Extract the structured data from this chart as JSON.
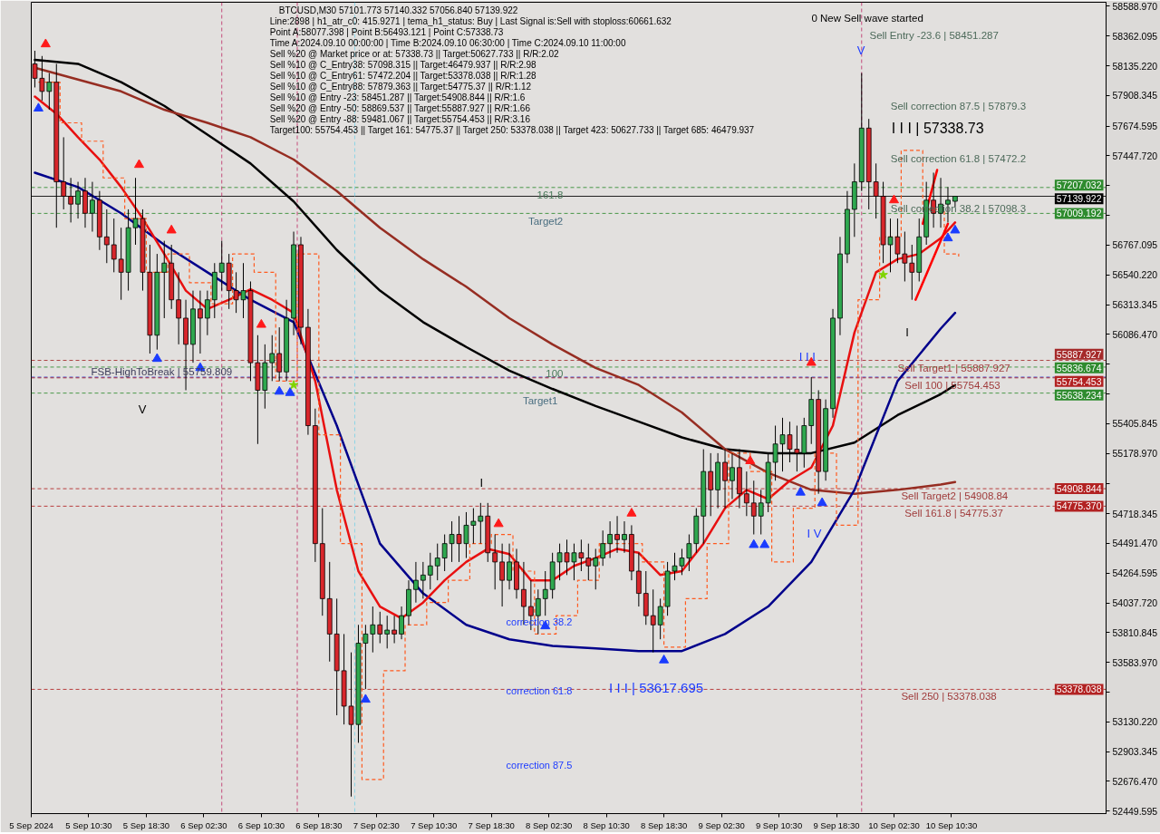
{
  "chart_data": {
    "type": "candlestick",
    "title": "BTCUSD,M30  57101.773 57140.332 57056.840 57139.922",
    "xlim": [
      "2024-09-05T02:30",
      "2024-09-11T08:00"
    ],
    "ylim": [
      52430,
      58620
    ],
    "xticks": [
      {
        "value": "2024-09-05T02:30",
        "label": "5 Sep 2024"
      },
      {
        "value": "2024-09-05T10:30",
        "label": "5 Sep 10:30"
      },
      {
        "value": "2024-09-05T18:30",
        "label": "5 Sep 18:30"
      },
      {
        "value": "2024-09-06T02:30",
        "label": "6 Sep 02:30"
      },
      {
        "value": "2024-09-06T10:30",
        "label": "6 Sep 10:30"
      },
      {
        "value": "2024-09-06T18:30",
        "label": "6 Sep 18:30"
      },
      {
        "value": "2024-09-07T02:30",
        "label": "7 Sep 02:30"
      },
      {
        "value": "2024-09-07T10:30",
        "label": "7 Sep 10:30"
      },
      {
        "value": "2024-09-07T18:30",
        "label": "7 Sep 18:30"
      },
      {
        "value": "2024-09-08T02:30",
        "label": "8 Sep 02:30"
      },
      {
        "value": "2024-09-08T10:30",
        "label": "8 Sep 10:30"
      },
      {
        "value": "2024-09-08T18:30",
        "label": "8 Sep 18:30"
      },
      {
        "value": "2024-09-09T02:30",
        "label": "9 Sep 02:30"
      },
      {
        "value": "2024-09-09T10:30",
        "label": "9 Sep 10:30"
      },
      {
        "value": "2024-09-09T18:30",
        "label": "9 Sep 18:30"
      },
      {
        "value": "2024-09-10T02:30",
        "label": "10 Sep 02:30"
      },
      {
        "value": "2024-09-10T10:30",
        "label": "10 Sep 10:30"
      }
    ],
    "yticks": [
      {
        "value": 52449.595,
        "label": "52449.595"
      },
      {
        "value": 52676.47,
        "label": "52676.470"
      },
      {
        "value": 52903.345,
        "label": "52903.345"
      },
      {
        "value": 53130.22,
        "label": "53130.220"
      },
      {
        "value": 53357.095,
        "label": null
      },
      {
        "value": 53583.97,
        "label": "53583.970"
      },
      {
        "value": 53810.845,
        "label": "53810.845"
      },
      {
        "value": 54037.72,
        "label": "54037.720"
      },
      {
        "value": 54264.595,
        "label": "54264.595"
      },
      {
        "value": 54491.47,
        "label": "54491.470"
      },
      {
        "value": 54718.345,
        "label": "54718.345"
      },
      {
        "value": 54945.22,
        "label": null
      },
      {
        "value": 55178.97,
        "label": "55178.970"
      },
      {
        "value": 55405.845,
        "label": "55405.845"
      },
      {
        "value": 55632.72,
        "label": null
      },
      {
        "value": 55859.595,
        "label": null
      },
      {
        "value": 56086.47,
        "label": "56086.470"
      },
      {
        "value": 56313.345,
        "label": "56313.345"
      },
      {
        "value": 56540.22,
        "label": "56540.220"
      },
      {
        "value": 56767.095,
        "label": "56767.095"
      },
      {
        "value": 56993.97,
        "label": null
      },
      {
        "value": 57220.845,
        "label": null
      },
      {
        "value": 57447.72,
        "label": "57447.720"
      },
      {
        "value": 57674.595,
        "label": "57674.595"
      },
      {
        "value": 57908.345,
        "label": "57908.345"
      },
      {
        "value": 58135.22,
        "label": "58135.220"
      },
      {
        "value": 58362.095,
        "label": "58362.095"
      },
      {
        "value": 58588.97,
        "label": "58588.970"
      }
    ],
    "x": [
      "2024-09-05T03:00",
      "2024-09-05T04:00",
      "2024-09-05T05:00",
      "2024-09-05T06:00",
      "2024-09-05T07:00",
      "2024-09-05T08:00",
      "2024-09-05T09:00",
      "2024-09-05T10:00",
      "2024-09-05T11:00",
      "2024-09-05T12:00",
      "2024-09-05T13:00",
      "2024-09-05T14:00",
      "2024-09-05T15:00",
      "2024-09-05T16:00",
      "2024-09-05T17:00",
      "2024-09-05T18:00",
      "2024-09-05T19:00",
      "2024-09-05T20:00",
      "2024-09-05T21:00",
      "2024-09-05T22:00",
      "2024-09-05T23:00",
      "2024-09-06T00:00",
      "2024-09-06T01:00",
      "2024-09-06T02:00",
      "2024-09-06T03:00",
      "2024-09-06T04:00",
      "2024-09-06T05:00",
      "2024-09-06T06:00",
      "2024-09-06T07:00",
      "2024-09-06T08:00",
      "2024-09-06T09:00",
      "2024-09-06T10:00",
      "2024-09-06T11:00",
      "2024-09-06T12:00",
      "2024-09-06T13:00",
      "2024-09-06T14:00",
      "2024-09-06T15:00",
      "2024-09-06T16:00",
      "2024-09-06T17:00",
      "2024-09-06T18:00",
      "2024-09-06T19:00",
      "2024-09-06T20:00",
      "2024-09-06T21:00",
      "2024-09-06T22:00",
      "2024-09-06T23:00",
      "2024-09-07T00:00",
      "2024-09-07T01:00",
      "2024-09-07T02:00",
      "2024-09-07T03:00",
      "2024-09-07T04:00",
      "2024-09-07T05:00",
      "2024-09-07T06:00",
      "2024-09-07T07:00",
      "2024-09-07T08:00",
      "2024-09-07T09:00",
      "2024-09-07T10:00",
      "2024-09-07T11:00",
      "2024-09-07T12:00",
      "2024-09-07T13:00",
      "2024-09-07T14:00",
      "2024-09-07T15:00",
      "2024-09-07T16:00",
      "2024-09-07T17:00",
      "2024-09-07T18:00",
      "2024-09-07T19:00",
      "2024-09-07T20:00",
      "2024-09-07T21:00",
      "2024-09-07T22:00",
      "2024-09-07T23:00",
      "2024-09-08T00:00",
      "2024-09-08T01:00",
      "2024-09-08T02:00",
      "2024-09-08T03:00",
      "2024-09-08T04:00",
      "2024-09-08T05:00",
      "2024-09-08T06:00",
      "2024-09-08T07:00",
      "2024-09-08T08:00",
      "2024-09-08T09:00",
      "2024-09-08T10:00",
      "2024-09-08T11:00",
      "2024-09-08T12:00",
      "2024-09-08T13:00",
      "2024-09-08T14:00",
      "2024-09-08T15:00",
      "2024-09-08T16:00",
      "2024-09-08T17:00",
      "2024-09-08T18:00",
      "2024-09-08T19:00",
      "2024-09-08T20:00",
      "2024-09-08T21:00",
      "2024-09-08T22:00",
      "2024-09-08T23:00",
      "2024-09-09T00:00",
      "2024-09-09T01:00",
      "2024-09-09T02:00",
      "2024-09-09T03:00",
      "2024-09-09T04:00",
      "2024-09-09T05:00",
      "2024-09-09T06:00",
      "2024-09-09T07:00",
      "2024-09-09T08:00",
      "2024-09-09T09:00",
      "2024-09-09T10:00",
      "2024-09-09T11:00",
      "2024-09-09T12:00",
      "2024-09-09T13:00",
      "2024-09-09T14:00",
      "2024-09-09T15:00",
      "2024-09-09T16:00",
      "2024-09-09T17:00",
      "2024-09-09T18:00",
      "2024-09-09T19:00",
      "2024-09-09T20:00",
      "2024-09-09T21:00",
      "2024-09-09T22:00",
      "2024-09-09T23:00",
      "2024-09-10T00:00",
      "2024-09-10T01:00",
      "2024-09-10T02:00",
      "2024-09-10T03:00",
      "2024-09-10T04:00",
      "2024-09-10T05:00",
      "2024-09-10T06:00",
      "2024-09-10T07:00",
      "2024-09-10T08:00",
      "2024-09-10T09:00",
      "2024-09-10T10:00",
      "2024-09-10T11:00"
    ],
    "ohlc": [
      [
        58150,
        58250,
        57970,
        58040
      ],
      [
        58040,
        58210,
        57870,
        57940
      ],
      [
        57940,
        58080,
        57800,
        58010
      ],
      [
        58010,
        58150,
        56900,
        57250
      ],
      [
        57250,
        57590,
        57040,
        57140
      ],
      [
        57140,
        57280,
        56940,
        57080
      ],
      [
        57080,
        57250,
        56970,
        57180
      ],
      [
        57180,
        57280,
        56900,
        57010
      ],
      [
        57010,
        57250,
        56870,
        57110
      ],
      [
        57110,
        57180,
        56730,
        56830
      ],
      [
        56830,
        57040,
        56630,
        56770
      ],
      [
        56770,
        56970,
        56560,
        56660
      ],
      [
        56660,
        56900,
        56350,
        56560
      ],
      [
        56560,
        57040,
        56420,
        56900
      ],
      [
        56900,
        57280,
        56770,
        56970
      ],
      [
        56970,
        57040,
        56420,
        56560
      ],
      [
        56560,
        56770,
        55940,
        56080
      ],
      [
        56080,
        56700,
        55970,
        56560
      ],
      [
        56560,
        56800,
        56210,
        56630
      ],
      [
        56630,
        56770,
        56280,
        56350
      ],
      [
        56350,
        56560,
        56010,
        56210
      ],
      [
        56210,
        56350,
        55660,
        56010
      ],
      [
        56010,
        56420,
        55870,
        56280
      ],
      [
        56280,
        56420,
        55940,
        56210
      ],
      [
        56210,
        56420,
        56080,
        56350
      ],
      [
        56350,
        56630,
        56210,
        56560
      ],
      [
        56560,
        56800,
        56420,
        56630
      ],
      [
        56630,
        56700,
        56280,
        56420
      ],
      [
        56420,
        56560,
        56250,
        56350
      ],
      [
        56350,
        56630,
        56210,
        56420
      ],
      [
        56420,
        56490,
        55730,
        55870
      ],
      [
        55870,
        56080,
        55250,
        55660
      ],
      [
        55660,
        56010,
        55520,
        55870
      ],
      [
        55870,
        56080,
        55730,
        55940
      ],
      [
        55940,
        56140,
        55730,
        55800
      ],
      [
        55800,
        56350,
        55730,
        56210
      ],
      [
        56210,
        56870,
        56080,
        56770
      ],
      [
        56770,
        56830,
        56010,
        56140
      ],
      [
        56140,
        56280,
        55320,
        55390
      ],
      [
        55390,
        55520,
        54350,
        54490
      ],
      [
        54490,
        54760,
        53940,
        54070
      ],
      [
        54070,
        54350,
        53590,
        53800
      ],
      [
        53800,
        54070,
        53180,
        53520
      ],
      [
        53520,
        53800,
        53110,
        53250
      ],
      [
        53250,
        53660,
        52560,
        53110
      ],
      [
        53110,
        53870,
        52970,
        53730
      ],
      [
        53730,
        53870,
        53380,
        53800
      ],
      [
        53800,
        54010,
        53660,
        53870
      ],
      [
        53870,
        53970,
        53730,
        53800
      ],
      [
        53800,
        53940,
        53690,
        53830
      ],
      [
        53830,
        53940,
        53730,
        53800
      ],
      [
        53800,
        54010,
        53760,
        53940
      ],
      [
        53940,
        54210,
        53870,
        54140
      ],
      [
        54140,
        54350,
        54040,
        54210
      ],
      [
        54210,
        54350,
        54070,
        54250
      ],
      [
        54250,
        54420,
        54140,
        54320
      ],
      [
        54320,
        54490,
        54210,
        54380
      ],
      [
        54380,
        54560,
        54280,
        54490
      ],
      [
        54490,
        54660,
        54350,
        54560
      ],
      [
        54560,
        54700,
        54350,
        54490
      ],
      [
        54490,
        54730,
        54380,
        54630
      ],
      [
        54630,
        54760,
        54490,
        54660
      ],
      [
        54660,
        54800,
        54490,
        54700
      ],
      [
        54700,
        54800,
        54350,
        54420
      ],
      [
        54420,
        54560,
        54140,
        54350
      ],
      [
        54350,
        54490,
        54010,
        54210
      ],
      [
        54210,
        54490,
        54140,
        54350
      ],
      [
        54350,
        54450,
        54070,
        54140
      ],
      [
        54140,
        54350,
        53870,
        54010
      ],
      [
        54010,
        54210,
        53830,
        53940
      ],
      [
        53940,
        54140,
        53800,
        54070
      ],
      [
        54070,
        54280,
        53940,
        54140
      ],
      [
        54140,
        54420,
        54070,
        54350
      ],
      [
        54350,
        54490,
        54210,
        54420
      ],
      [
        54420,
        54520,
        54250,
        54350
      ],
      [
        54350,
        54490,
        54210,
        54420
      ],
      [
        54420,
        54520,
        54280,
        54380
      ],
      [
        54380,
        54490,
        54210,
        54320
      ],
      [
        54320,
        54450,
        54140,
        54380
      ],
      [
        54380,
        54590,
        54320,
        54490
      ],
      [
        54490,
        54660,
        54380,
        54560
      ],
      [
        54560,
        54700,
        54420,
        54520
      ],
      [
        54520,
        54660,
        54420,
        54560
      ],
      [
        54560,
        54630,
        54210,
        54280
      ],
      [
        54280,
        54420,
        54010,
        54110
      ],
      [
        54110,
        54280,
        53870,
        53940
      ],
      [
        53940,
        54140,
        53660,
        53870
      ],
      [
        53870,
        54070,
        53760,
        54010
      ],
      [
        54010,
        54350,
        53940,
        54280
      ],
      [
        54280,
        54420,
        54210,
        54320
      ],
      [
        54320,
        54450,
        54250,
        54380
      ],
      [
        54380,
        54560,
        54280,
        54490
      ],
      [
        54490,
        54760,
        54420,
        54700
      ],
      [
        54700,
        55210,
        54490,
        55040
      ],
      [
        55040,
        55180,
        54700,
        54900
      ],
      [
        54900,
        55180,
        54760,
        55110
      ],
      [
        55110,
        55210,
        54760,
        54970
      ],
      [
        54970,
        55180,
        54830,
        55070
      ],
      [
        55070,
        55210,
        54760,
        54870
      ],
      [
        54870,
        55040,
        54700,
        54800
      ],
      [
        54800,
        54970,
        54560,
        54700
      ],
      [
        54700,
        54900,
        54560,
        54800
      ],
      [
        54800,
        55180,
        54730,
        55110
      ],
      [
        55110,
        55390,
        54970,
        55250
      ],
      [
        55250,
        55450,
        55040,
        55320
      ],
      [
        55320,
        55420,
        55110,
        55210
      ],
      [
        55210,
        55390,
        55040,
        55180
      ],
      [
        55180,
        55450,
        55070,
        55390
      ],
      [
        55390,
        55760,
        55250,
        55590
      ],
      [
        55590,
        55660,
        54870,
        55040
      ],
      [
        55040,
        55590,
        54970,
        55520
      ],
      [
        55520,
        56280,
        55450,
        56210
      ],
      [
        56210,
        56830,
        56080,
        56700
      ],
      [
        56700,
        57180,
        56630,
        57040
      ],
      [
        57040,
        57390,
        56830,
        57250
      ],
      [
        57250,
        58080,
        57180,
        57660
      ],
      [
        57660,
        57730,
        57040,
        57250
      ],
      [
        57250,
        57390,
        56970,
        57140
      ],
      [
        57140,
        57250,
        56630,
        56770
      ],
      [
        56770,
        56970,
        56560,
        56830
      ],
      [
        56830,
        56970,
        56630,
        56700
      ],
      [
        56700,
        56870,
        56490,
        56630
      ],
      [
        56630,
        56770,
        56350,
        56560
      ],
      [
        56560,
        56970,
        56490,
        56830
      ],
      [
        56830,
        57250,
        56770,
        57110
      ],
      [
        57110,
        57320,
        56900,
        57010
      ],
      [
        57010,
        57280,
        56900,
        57080
      ],
      [
        57080,
        57210,
        56940,
        57110
      ],
      [
        57101.773,
        57140.332,
        57056.84,
        57139.922
      ]
    ],
    "series": [
      {
        "type": "line",
        "color": "#000000",
        "x": [
          "2024-09-05T03:00",
          "2024-09-05T09:00",
          "2024-09-05T15:00",
          "2024-09-05T21:00",
          "2024-09-06T03:00",
          "2024-09-06T09:00",
          "2024-09-06T15:00",
          "2024-09-06T21:00",
          "2024-09-07T03:00",
          "2024-09-07T09:00",
          "2024-09-07T15:00",
          "2024-09-07T21:00",
          "2024-09-08T03:00",
          "2024-09-08T09:00",
          "2024-09-08T15:00",
          "2024-09-08T21:00",
          "2024-09-09T03:00",
          "2024-09-09T09:00",
          "2024-09-09T15:00",
          "2024-09-09T21:00",
          "2024-09-10T03:00",
          "2024-09-10T09:00",
          "2024-09-10T11:00"
        ],
        "values": [
          58180,
          58150,
          58010,
          57830,
          57610,
          57390,
          57100,
          56730,
          56420,
          56180,
          55990,
          55810,
          55670,
          55540,
          55420,
          55300,
          55210,
          55180,
          55180,
          55260,
          55470,
          55630,
          55700
        ]
      },
      {
        "type": "line",
        "color": "#962d22",
        "x": [
          "2024-09-05T03:00",
          "2024-09-05T09:00",
          "2024-09-05T15:00",
          "2024-09-05T21:00",
          "2024-09-06T03:00",
          "2024-09-06T09:00",
          "2024-09-06T15:00",
          "2024-09-06T21:00",
          "2024-09-07T03:00",
          "2024-09-07T09:00",
          "2024-09-07T15:00",
          "2024-09-07T21:00",
          "2024-09-08T03:00",
          "2024-09-08T09:00",
          "2024-09-08T15:00",
          "2024-09-08T21:00",
          "2024-09-09T03:00",
          "2024-09-09T09:00",
          "2024-09-09T15:00",
          "2024-09-09T21:00",
          "2024-09-10T03:00",
          "2024-09-10T09:00",
          "2024-09-10T11:00"
        ],
        "values": [
          58120,
          58030,
          57940,
          57800,
          57700,
          57590,
          57420,
          57180,
          56900,
          56660,
          56450,
          56210,
          56010,
          55830,
          55700,
          55490,
          55210,
          55030,
          54900,
          54870,
          54900,
          54940,
          54960
        ]
      },
      {
        "type": "line",
        "color": "#00008b",
        "x": [
          "2024-09-05T03:00",
          "2024-09-05T09:00",
          "2024-09-05T15:00",
          "2024-09-05T21:00",
          "2024-09-06T03:00",
          "2024-09-06T09:00",
          "2024-09-06T15:00",
          "2024-09-06T21:00",
          "2024-09-07T03:00",
          "2024-09-07T09:00",
          "2024-09-07T15:00",
          "2024-09-07T21:00",
          "2024-09-08T03:00",
          "2024-09-08T09:00",
          "2024-09-08T15:00",
          "2024-09-08T21:00",
          "2024-09-09T03:00",
          "2024-09-09T09:00",
          "2024-09-09T15:00",
          "2024-09-09T21:00",
          "2024-09-10T03:00",
          "2024-09-10T09:00",
          "2024-09-10T11:00"
        ],
        "values": [
          57320,
          57210,
          57010,
          56770,
          56560,
          56350,
          56180,
          55390,
          54490,
          54110,
          53870,
          53760,
          53710,
          53690,
          53670,
          53670,
          53800,
          54010,
          54350,
          54900,
          55730,
          56130,
          56250
        ]
      },
      {
        "type": "line",
        "color": "#e81010",
        "x": [
          "2024-09-05T03:00",
          "2024-09-05T06:00",
          "2024-09-05T09:00",
          "2024-09-05T12:00",
          "2024-09-05T15:00",
          "2024-09-05T18:00",
          "2024-09-05T21:00",
          "2024-09-06T00:00",
          "2024-09-06T03:00",
          "2024-09-06T06:00",
          "2024-09-06T09:00",
          "2024-09-06T12:00",
          "2024-09-06T15:00",
          "2024-09-06T18:00",
          "2024-09-06T21:00",
          "2024-09-07T00:00",
          "2024-09-07T03:00",
          "2024-09-07T06:00",
          "2024-09-07T09:00",
          "2024-09-07T12:00",
          "2024-09-07T15:00",
          "2024-09-07T18:00",
          "2024-09-07T21:00",
          "2024-09-08T00:00",
          "2024-09-08T03:00",
          "2024-09-08T06:00",
          "2024-09-08T09:00",
          "2024-09-08T12:00",
          "2024-09-08T15:00",
          "2024-09-08T18:00",
          "2024-09-08T21:00",
          "2024-09-09T00:00",
          "2024-09-09T03:00",
          "2024-09-09T06:00",
          "2024-09-09T09:00",
          "2024-09-09T12:00",
          "2024-09-09T15:00",
          "2024-09-09T18:00",
          "2024-09-09T21:00",
          "2024-09-10T00:00",
          "2024-09-10T03:00",
          "2024-09-10T06:00",
          "2024-09-10T09:00",
          "2024-09-10T11:00"
        ],
        "values": [
          57900,
          57770,
          57590,
          57420,
          57210,
          56970,
          56700,
          56420,
          56280,
          56350,
          56430,
          56350,
          56250,
          55730,
          54900,
          54280,
          54010,
          53920,
          54040,
          54210,
          54350,
          54450,
          54410,
          54210,
          54210,
          54320,
          54380,
          54450,
          54420,
          54250,
          54280,
          54490,
          54760,
          54900,
          54830,
          54970,
          55070,
          55390,
          56100,
          56560,
          56660,
          56700,
          56820,
          56940
        ]
      },
      {
        "type": "step",
        "color": "#ff5a1f",
        "line_style": "dashed",
        "x": [
          "2024-09-05T03:30",
          "2024-09-05T06:30",
          "2024-09-05T09:30",
          "2024-09-05T12:30",
          "2024-09-05T15:30",
          "2024-09-05T18:30",
          "2024-09-05T21:30",
          "2024-09-06T00:30",
          "2024-09-06T03:30",
          "2024-09-06T06:30",
          "2024-09-06T09:30",
          "2024-09-06T12:30",
          "2024-09-06T15:30",
          "2024-09-06T18:30",
          "2024-09-06T21:30",
          "2024-09-07T00:30",
          "2024-09-07T03:30",
          "2024-09-07T06:30",
          "2024-09-07T09:30",
          "2024-09-07T12:30",
          "2024-09-07T15:30",
          "2024-09-07T18:30",
          "2024-09-07T21:30",
          "2024-09-08T00:30",
          "2024-09-08T03:30",
          "2024-09-08T06:30",
          "2024-09-08T09:30",
          "2024-09-08T12:30",
          "2024-09-08T15:30",
          "2024-09-08T18:30",
          "2024-09-08T21:30",
          "2024-09-09T00:30",
          "2024-09-09T03:30",
          "2024-09-09T06:30",
          "2024-09-09T09:30",
          "2024-09-09T12:30",
          "2024-09-09T15:30",
          "2024-09-09T18:30",
          "2024-09-09T21:30",
          "2024-09-10T00:30",
          "2024-09-10T03:30",
          "2024-09-10T06:30",
          "2024-09-10T09:30",
          "2024-09-10T11:30"
        ],
        "values": [
          58010,
          57700,
          57560,
          57280,
          56970,
          56560,
          56700,
          56480,
          56320,
          56700,
          56560,
          55730,
          56700,
          55320,
          54490,
          52690,
          53520,
          53870,
          54040,
          54210,
          54490,
          54560,
          54280,
          53800,
          53940,
          54210,
          54490,
          54490,
          54350,
          53700,
          54070,
          54490,
          55180,
          55040,
          54350,
          54760,
          55180,
          54630,
          56350,
          56830,
          57490,
          57040,
          56700,
          56680
        ]
      },
      {
        "type": "line",
        "color": "#ff0000",
        "x": [
          "2024-09-10T06:30",
          "2024-09-10T08:30"
        ],
        "values": [
          56930,
          57340
        ]
      },
      {
        "type": "line",
        "color": "#ff0000",
        "x": [
          "2024-09-10T05:30",
          "2024-09-10T10:00"
        ],
        "values": [
          56350,
          56930
        ]
      },
      {
        "type": "scatter",
        "color": "#1a3cff",
        "marker": "triangle",
        "x": [
          "2024-09-05T03:30",
          "2024-09-05T20:00",
          "2024-09-06T02:00",
          "2024-09-06T13:00",
          "2024-09-06T14:30",
          "2024-09-07T01:00",
          "2024-09-08T02:00",
          "2024-09-08T18:30",
          "2024-09-09T07:00",
          "2024-09-09T08:30",
          "2024-09-09T13:30",
          "2024-09-09T16:30",
          "2024-09-10T10:00",
          "2024-09-10T11:00"
        ],
        "values": [
          57810,
          55900,
          55830,
          55650,
          55640,
          53300,
          53860,
          53600,
          54480,
          54480,
          54880,
          54800,
          56820,
          56880
        ]
      },
      {
        "type": "scatter",
        "color": "#ff1a1a",
        "marker": "triangle",
        "x": [
          "2024-09-05T04:30",
          "2024-09-05T17:30",
          "2024-09-05T22:00",
          "2024-09-06T10:30",
          "2024-09-07T19:30",
          "2024-09-08T14:00",
          "2024-09-09T06:30",
          "2024-09-09T15:00",
          "2024-09-10T02:30"
        ],
        "values": [
          58300,
          57380,
          56880,
          56160,
          54640,
          54720,
          55120,
          55870,
          57110
        ]
      },
      {
        "type": "scatter",
        "color": "#7fd400",
        "marker": "star",
        "x": [
          "2024-09-06T15:00",
          "2024-09-10T01:00"
        ],
        "values": [
          55700,
          56540
        ]
      }
    ],
    "ref_lines": [
      {
        "axis": "y",
        "value": 57207.032,
        "label": "57207.032",
        "color": "#2e8b2e",
        "line_style": "dashed"
      },
      {
        "axis": "y",
        "value": 57139.922,
        "label": "57139.922",
        "color": "#000000",
        "line_style": "solid"
      },
      {
        "axis": "y",
        "value": 57009.192,
        "label": "57009.192",
        "color": "#2e8b2e",
        "line_style": "dashed"
      },
      {
        "axis": "y",
        "value": 55887.927,
        "label": "55887.927",
        "color": "#a52a2a",
        "line_style": "dashed"
      },
      {
        "axis": "y",
        "value": 55836.674,
        "label": "55836.674",
        "color": "#2e8b2e",
        "line_style": "dashed"
      },
      {
        "axis": "y",
        "value": 55759.809,
        "color": "#1a2acc",
        "line_style": "dashed"
      },
      {
        "axis": "y",
        "value": 55754.453,
        "label": "55754.453",
        "color": "#b22222",
        "line_style": "dashed"
      },
      {
        "axis": "y",
        "value": 55638.234,
        "label": "55638.234",
        "color": "#2e8b2e",
        "line_style": "dashed"
      },
      {
        "axis": "y",
        "value": 54908.844,
        "label": "54908.844",
        "color": "#b22222",
        "line_style": "dashed"
      },
      {
        "axis": "y",
        "value": 54775.37,
        "label": "54775.370",
        "color": "#b22222",
        "line_style": "dashed"
      },
      {
        "axis": "y",
        "value": 53378.038,
        "label": "53378.038",
        "color": "#b22222",
        "line_style": "dashed"
      },
      {
        "axis": "x",
        "value": "2024-09-06T05:00",
        "color": "#c0306a",
        "line_style": "dashed"
      },
      {
        "axis": "x",
        "value": "2024-09-06T15:30",
        "color": "#c0306a",
        "line_style": "dashed"
      },
      {
        "axis": "x",
        "value": "2024-09-06T23:30",
        "color": "#7fd3e6",
        "line_style": "dashed"
      },
      {
        "axis": "x",
        "value": "2024-09-09T22:00",
        "color": "#c0306a",
        "line_style": "dashed"
      }
    ],
    "annotations": [
      "Line:2898 | h1_atr_c0: 415.9271 | tema_h1_status: Buy | Last Signal is:Sell with stoploss:60661.632",
      "Point A:58077.398 | Point B:56493.121 | Point C:57338.73",
      "Time A:2024.09.10 00:00:00 | Time B:2024.09.10 06:30:00 | Time C:2024.09.10 11:00:00",
      "Sell %20 @ Market price or at: 57338.73 || Target:50627.733 || R/R:2.02",
      "Sell %10 @ C_Entry38: 57098.315 || Target:46479.937 || R/R:2.98",
      "Sell %10 @ C_Entry61: 57472.204 || Target:53378.038 || R/R:1.28",
      "Sell %10 @ C_Entry88: 57879.363 || Target:54775.37 || R/R:1.12",
      "Sell %10 @ Entry -23: 58451.287 || Target:54908.844 || R/R:1.6",
      "Sell %20 @ Entry -50: 58869.537 || Target:55887.927 || R/R:1.66",
      "Sell %20 @ Entry -88: 59481.067 || Target:55754.453 || R/R:3.16",
      "Target100: 55754.453 || Target 161: 54775.37 || Target 250: 53378.038 || Target 423: 50627.733 || Target 685: 46479.937",
      "0 New Sell wave started",
      "Sell Entry -23.6 | 58451.287",
      "Sell correction 87.5 | 57879.3",
      "I I I | 57338.73",
      "Sell correction 61.8 | 57472.2",
      "Sell correction 38.2 | 57098.3",
      "FSB-HighToBreak | 55759.809",
      "161.8",
      "Target2",
      "100",
      "Target1",
      "correction 38.2",
      "correction 61.8",
      "correction 87.5",
      "I I I | 53617.695",
      "V",
      "V",
      "I V",
      "I I I",
      "I",
      "I",
      {
        "text": "Sell Target1 | 55887.927",
        "x": "2024-09-10T03:00",
        "y": 55887.927
      },
      {
        "text": "Sell 100 | 55754.453",
        "x": "2024-09-10T04:00",
        "y": 55754.453
      },
      {
        "text": "Sell Target2 | 54908.84",
        "x": "2024-09-10T03:30",
        "y": 54908.844
      },
      {
        "text": "Sell 161.8 | 54775.37",
        "x": "2024-09-10T04:00",
        "y": 54775.37
      },
      {
        "text": "Sell 250 | 53378.038",
        "x": "2024-09-10T03:30",
        "y": 53378.038
      }
    ]
  }
}
